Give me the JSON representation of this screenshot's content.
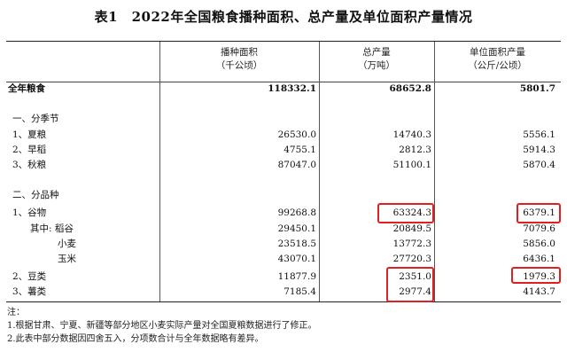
{
  "title": "表1　2022年全国粮食播种面积、总产量及单位面积产量情况",
  "headers": {
    "c1_line1": "播种面积",
    "c1_line2": "（千公顷）",
    "c2_line1": "总产量",
    "c2_line2": "（万吨）",
    "c3_line1": "单位面积产量",
    "c3_line2": "（公斤/公顷）"
  },
  "total": {
    "label": "全年粮食",
    "area": "118332.1",
    "output": "68652.8",
    "yield": "5801.7"
  },
  "season_section": "一、分季节",
  "season_rows": [
    {
      "label": "1、夏粮",
      "area": "26530.0",
      "output": "14740.3",
      "yield": "5556.1"
    },
    {
      "label": "2、早稻",
      "area": "4755.1",
      "output": "2812.3",
      "yield": "5914.3"
    },
    {
      "label": "3、秋粮",
      "area": "87047.0",
      "output": "51100.1",
      "yield": "5870.4"
    }
  ],
  "variety_section": "二、分品种",
  "variety_rows": [
    {
      "label": "1、谷物",
      "area": "99268.8",
      "output": "63324.3",
      "yield": "6379.1"
    },
    {
      "label": "其中: 稻谷",
      "area": "29450.1",
      "output": "20849.5",
      "yield": "7079.6"
    },
    {
      "label": "小麦",
      "area": "23518.5",
      "output": "13772.3",
      "yield": "5856.0"
    },
    {
      "label": "玉米",
      "area": "43070.1",
      "output": "27720.3",
      "yield": "6436.1"
    },
    {
      "label": "2、豆类",
      "area": "11877.9",
      "output": "2351.0",
      "yield": "1979.3"
    },
    {
      "label": "3、薯类",
      "area": "7185.4",
      "output": "2977.4",
      "yield": "4143.7"
    }
  ],
  "notes": {
    "heading": "注：",
    "line1": "1.根据甘肃、宁夏、新疆等部分地区小麦实际产量对全国夏粮数据进行了修正。",
    "line2": "2.此表中部分数据因四舍五入，分项数合计与全年数据略有差异。"
  }
}
